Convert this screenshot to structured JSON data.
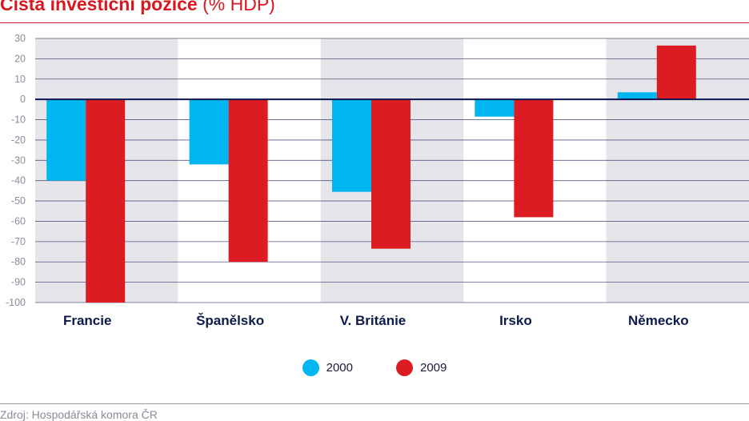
{
  "title": {
    "main": "Čistá investiční pozice",
    "unit": "(% HDP)"
  },
  "legend": [
    {
      "label": "2000",
      "color": "#00b6f1"
    },
    {
      "label": "2009",
      "color": "#dc1c22"
    }
  ],
  "source": "Zdroj: Hospodářská komora ČR",
  "chart_data": {
    "type": "bar",
    "title": "Čistá investiční pozice",
    "ylabel": "(% HDP)",
    "categories": [
      "Francie",
      "Španělsko",
      "V. Británie",
      "Irsko",
      "Německo"
    ],
    "series": [
      {
        "name": "2000",
        "color": "#00b6f1",
        "values": [
          -40,
          -32,
          -45.5,
          -8.5,
          3.5
        ]
      },
      {
        "name": "2009",
        "color": "#dc1c22",
        "values": [
          -100,
          -80,
          -73.5,
          -58,
          26.5
        ]
      }
    ],
    "ylim": [
      -100,
      30
    ],
    "yticks": [
      30,
      20,
      10,
      0,
      -10,
      -20,
      -30,
      -40,
      -50,
      -60,
      -70,
      -80,
      -90,
      -100
    ],
    "grid": true,
    "legend_position": "bottom-center",
    "colors": {
      "band": "#e6e5ea",
      "grid": "#1e2a5a",
      "zero": "#0b1550",
      "tick": "#8b8b99",
      "category": "#0d1a4a"
    }
  }
}
